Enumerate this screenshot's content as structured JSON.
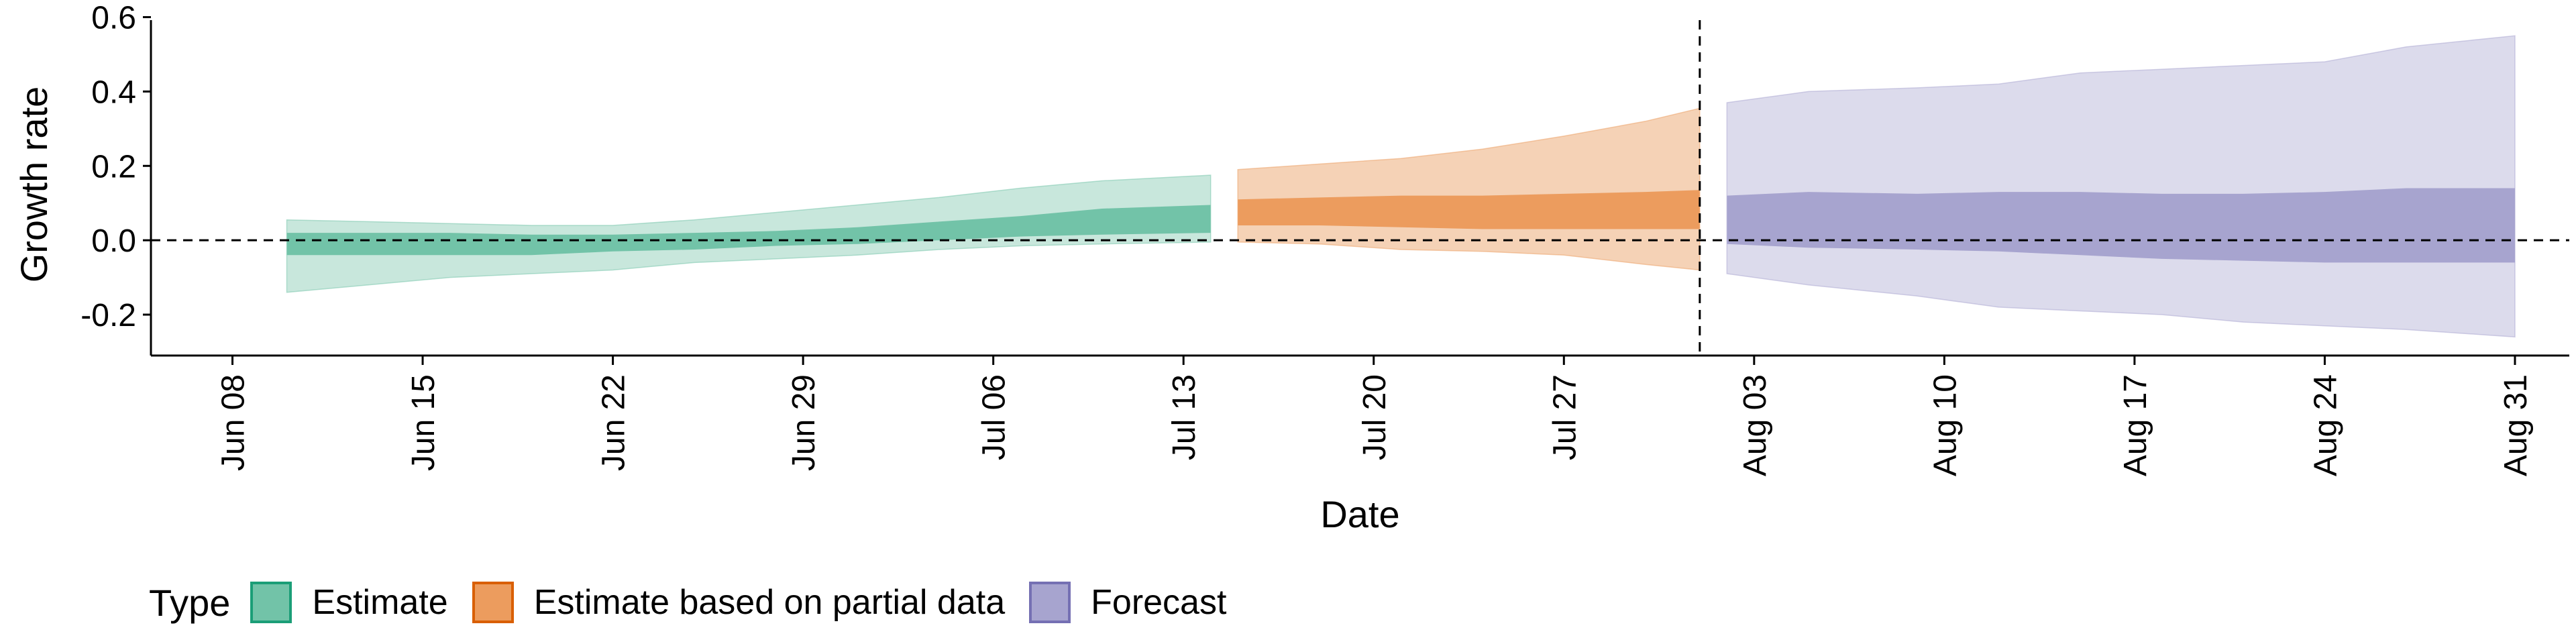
{
  "chart_data": {
    "type": "area",
    "xlabel": "Date",
    "ylabel": "Growth rate",
    "ylim": [
      -0.31,
      0.61
    ],
    "yticks": [
      -0.2,
      0.0,
      0.2,
      0.4,
      0.6
    ],
    "ytick_labels": [
      "-0.2",
      "0.0",
      "0.2",
      "0.4",
      "0.6"
    ],
    "xlim": [
      "2020-06-05",
      "2020-09-02"
    ],
    "xticks": [
      "2020-06-08",
      "2020-06-15",
      "2020-06-22",
      "2020-06-29",
      "2020-07-06",
      "2020-07-13",
      "2020-07-20",
      "2020-07-27",
      "2020-08-03",
      "2020-08-10",
      "2020-08-17",
      "2020-08-24",
      "2020-08-31"
    ],
    "xtick_labels": [
      "Jun 08",
      "Jun 15",
      "Jun 22",
      "Jun 29",
      "Jul 06",
      "Jul 13",
      "Jul 20",
      "Jul 27",
      "Aug 03",
      "Aug 10",
      "Aug 17",
      "Aug 24",
      "Aug 31"
    ],
    "reference_lines": {
      "horizontal_y": 0.0,
      "vertical_x": "2020-08-01"
    },
    "grid": false,
    "legend": {
      "title": "Type",
      "position": "bottom-left",
      "entries": [
        {
          "label": "Estimate",
          "fill": "#72c3a8",
          "border": "#1b9e77"
        },
        {
          "label": "Estimate based on partial data",
          "fill": "#ec9c5e",
          "border": "#d95f02"
        },
        {
          "label": "Forecast",
          "fill": "#a7a4cf",
          "border": "#7570b3"
        }
      ]
    },
    "series": [
      {
        "name": "Estimate",
        "inner_color": "#72c3a8",
        "outer_color": "#c8e7dc",
        "points": [
          {
            "date": "2020-06-10",
            "lower90": -0.14,
            "lower50": -0.04,
            "upper50": 0.02,
            "upper90": 0.055
          },
          {
            "date": "2020-06-13",
            "lower90": -0.12,
            "lower50": -0.04,
            "upper50": 0.02,
            "upper90": 0.05
          },
          {
            "date": "2020-06-16",
            "lower90": -0.1,
            "lower50": -0.04,
            "upper50": 0.02,
            "upper90": 0.045
          },
          {
            "date": "2020-06-19",
            "lower90": -0.09,
            "lower50": -0.04,
            "upper50": 0.015,
            "upper90": 0.04
          },
          {
            "date": "2020-06-22",
            "lower90": -0.08,
            "lower50": -0.03,
            "upper50": 0.015,
            "upper90": 0.04
          },
          {
            "date": "2020-06-25",
            "lower90": -0.06,
            "lower50": -0.025,
            "upper50": 0.02,
            "upper90": 0.055
          },
          {
            "date": "2020-06-28",
            "lower90": -0.05,
            "lower50": -0.015,
            "upper50": 0.025,
            "upper90": 0.075
          },
          {
            "date": "2020-07-01",
            "lower90": -0.04,
            "lower50": -0.01,
            "upper50": 0.035,
            "upper90": 0.095
          },
          {
            "date": "2020-07-04",
            "lower90": -0.025,
            "lower50": 0.0,
            "upper50": 0.05,
            "upper90": 0.115
          },
          {
            "date": "2020-07-07",
            "lower90": -0.015,
            "lower50": 0.01,
            "upper50": 0.065,
            "upper90": 0.14
          },
          {
            "date": "2020-07-10",
            "lower90": -0.01,
            "lower50": 0.015,
            "upper50": 0.085,
            "upper90": 0.16
          },
          {
            "date": "2020-07-14",
            "lower90": -0.005,
            "lower50": 0.02,
            "upper50": 0.095,
            "upper90": 0.175
          }
        ]
      },
      {
        "name": "Estimate based on partial data",
        "inner_color": "#ec9c5e",
        "outer_color": "#f5d2b6",
        "points": [
          {
            "date": "2020-07-15",
            "lower90": -0.005,
            "lower50": 0.04,
            "upper50": 0.11,
            "upper90": 0.19
          },
          {
            "date": "2020-07-18",
            "lower90": -0.01,
            "lower50": 0.04,
            "upper50": 0.115,
            "upper90": 0.205
          },
          {
            "date": "2020-07-21",
            "lower90": -0.025,
            "lower50": 0.035,
            "upper50": 0.12,
            "upper90": 0.22
          },
          {
            "date": "2020-07-24",
            "lower90": -0.03,
            "lower50": 0.03,
            "upper50": 0.12,
            "upper90": 0.245
          },
          {
            "date": "2020-07-27",
            "lower90": -0.04,
            "lower50": 0.03,
            "upper50": 0.125,
            "upper90": 0.28
          },
          {
            "date": "2020-07-30",
            "lower90": -0.065,
            "lower50": 0.03,
            "upper50": 0.13,
            "upper90": 0.32
          },
          {
            "date": "2020-08-01",
            "lower90": -0.08,
            "lower50": 0.03,
            "upper50": 0.135,
            "upper90": 0.355
          }
        ]
      },
      {
        "name": "Forecast",
        "inner_color": "#a7a4cf",
        "outer_color": "#dcdbec",
        "points": [
          {
            "date": "2020-08-02",
            "lower90": -0.09,
            "lower50": -0.01,
            "upper50": 0.12,
            "upper90": 0.37
          },
          {
            "date": "2020-08-05",
            "lower90": -0.12,
            "lower50": -0.02,
            "upper50": 0.13,
            "upper90": 0.4
          },
          {
            "date": "2020-08-09",
            "lower90": -0.15,
            "lower50": -0.025,
            "upper50": 0.125,
            "upper90": 0.41
          },
          {
            "date": "2020-08-12",
            "lower90": -0.18,
            "lower50": -0.03,
            "upper50": 0.13,
            "upper90": 0.42
          },
          {
            "date": "2020-08-15",
            "lower90": -0.19,
            "lower50": -0.04,
            "upper50": 0.13,
            "upper90": 0.45
          },
          {
            "date": "2020-08-18",
            "lower90": -0.2,
            "lower50": -0.05,
            "upper50": 0.125,
            "upper90": 0.46
          },
          {
            "date": "2020-08-21",
            "lower90": -0.22,
            "lower50": -0.055,
            "upper50": 0.125,
            "upper90": 0.47
          },
          {
            "date": "2020-08-24",
            "lower90": -0.23,
            "lower50": -0.06,
            "upper50": 0.13,
            "upper90": 0.48
          },
          {
            "date": "2020-08-27",
            "lower90": -0.24,
            "lower50": -0.06,
            "upper50": 0.14,
            "upper90": 0.52
          },
          {
            "date": "2020-08-31",
            "lower90": -0.26,
            "lower50": -0.06,
            "upper50": 0.14,
            "upper90": 0.55
          }
        ]
      }
    ]
  }
}
